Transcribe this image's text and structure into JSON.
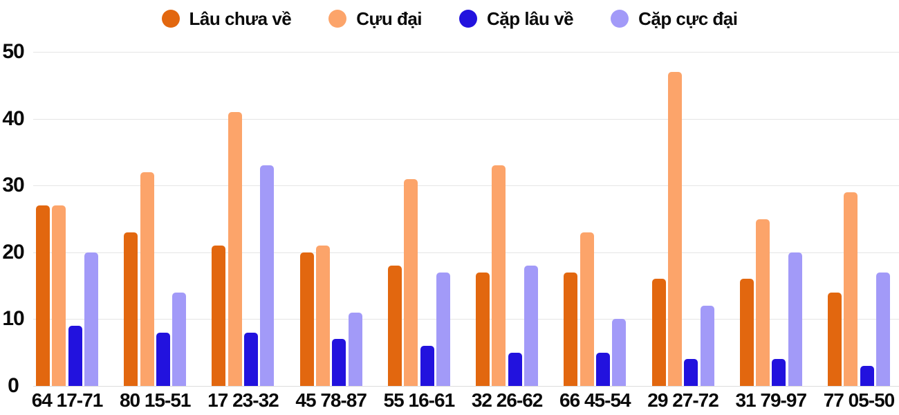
{
  "colors": {
    "background": "#ffffff",
    "gridline": "#e5e5e5",
    "axis_text": "#0a0a0a",
    "series_1": "#e2670f",
    "series_2": "#fca46a",
    "series_3": "#2212de",
    "series_4": "#a29af8"
  },
  "legend": {
    "position": "top",
    "swatch_shape": "circle"
  },
  "chart_data": {
    "type": "bar",
    "title": "",
    "xlabel": "",
    "ylabel": "",
    "categories": [
      "64 17-71",
      "80 15-51",
      "17 23-32",
      "45 78-87",
      "55 16-61",
      "32 26-62",
      "66 45-54",
      "29 27-72",
      "31 79-97",
      "77 05-50"
    ],
    "series": [
      {
        "name": "Lâu chưa về",
        "color": "#e2670f",
        "values": [
          27,
          23,
          21,
          20,
          18,
          17,
          17,
          16,
          16,
          14
        ]
      },
      {
        "name": "Cựu đại",
        "color": "#fca46a",
        "values": [
          27,
          32,
          41,
          21,
          31,
          33,
          23,
          47,
          25,
          29
        ]
      },
      {
        "name": "Cặp lâu về",
        "color": "#2212de",
        "values": [
          9,
          8,
          8,
          7,
          6,
          5,
          5,
          4,
          4,
          3
        ]
      },
      {
        "name": "Cặp cực đại",
        "color": "#a29af8",
        "values": [
          20,
          14,
          33,
          11,
          17,
          18,
          10,
          12,
          20,
          17
        ]
      }
    ],
    "ylim": [
      0,
      50
    ],
    "yticks": [
      0,
      10,
      20,
      30,
      40,
      50
    ],
    "grid": true,
    "legend_position": "top"
  }
}
